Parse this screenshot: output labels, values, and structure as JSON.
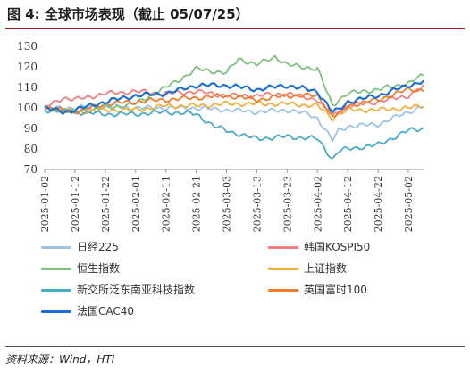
{
  "header": {
    "title": "图 4:  全球市场表现（截止 05/07/25）"
  },
  "source": "资料来源：Wind，HTI",
  "chart_data": {
    "type": "line",
    "title": "",
    "xlabel": "",
    "ylabel": "",
    "ylim": [
      70,
      130
    ],
    "yticks": [
      70,
      80,
      90,
      100,
      110,
      120,
      130
    ],
    "grid": false,
    "legend_position": "bottom",
    "x_tick_labels": [
      "2025-01-02",
      "2025-01-12",
      "2025-01-22",
      "2025-02-01",
      "2025-02-11",
      "2025-02-21",
      "2025-03-03",
      "2025-03-13",
      "2025-03-23",
      "2025-04-02",
      "2025-04-12",
      "2025-04-22",
      "2025-05-02"
    ],
    "x_start": "2025-01-02",
    "x_end": "2025-05-07",
    "series": [
      {
        "name": "日经225",
        "color": "#9DC3E6",
        "points": [
          [
            "2025-01-02",
            100
          ],
          [
            "2025-01-12",
            100
          ],
          [
            "2025-01-22",
            101
          ],
          [
            "2025-02-01",
            100
          ],
          [
            "2025-02-11",
            100
          ],
          [
            "2025-02-21",
            100
          ],
          [
            "2025-03-03",
            99
          ],
          [
            "2025-03-13",
            98
          ],
          [
            "2025-03-23",
            99
          ],
          [
            "2025-03-30",
            97
          ],
          [
            "2025-04-02",
            95
          ],
          [
            "2025-04-07",
            84
          ],
          [
            "2025-04-09",
            89
          ],
          [
            "2025-04-12",
            91
          ],
          [
            "2025-04-22",
            92
          ],
          [
            "2025-05-02",
            98
          ],
          [
            "2025-05-07",
            101
          ]
        ]
      },
      {
        "name": "韩国KOSPI50",
        "color": "#F08080",
        "points": [
          [
            "2025-01-02",
            100
          ],
          [
            "2025-01-08",
            105
          ],
          [
            "2025-01-12",
            104
          ],
          [
            "2025-01-22",
            107
          ],
          [
            "2025-02-01",
            108
          ],
          [
            "2025-02-11",
            107
          ],
          [
            "2025-02-21",
            108
          ],
          [
            "2025-03-03",
            106
          ],
          [
            "2025-03-13",
            106
          ],
          [
            "2025-03-23",
            107
          ],
          [
            "2025-04-02",
            104
          ],
          [
            "2025-04-07",
            96
          ],
          [
            "2025-04-09",
            98
          ],
          [
            "2025-04-12",
            101
          ],
          [
            "2025-04-22",
            103
          ],
          [
            "2025-05-02",
            106
          ],
          [
            "2025-05-07",
            110
          ]
        ]
      },
      {
        "name": "恒生指数",
        "color": "#7FBF7F",
        "points": [
          [
            "2025-01-02",
            100
          ],
          [
            "2025-01-12",
            98
          ],
          [
            "2025-01-22",
            100
          ],
          [
            "2025-02-01",
            102
          ],
          [
            "2025-02-11",
            110
          ],
          [
            "2025-02-18",
            116
          ],
          [
            "2025-02-21",
            119
          ],
          [
            "2025-03-03",
            117
          ],
          [
            "2025-03-07",
            124
          ],
          [
            "2025-03-13",
            121
          ],
          [
            "2025-03-19",
            125
          ],
          [
            "2025-03-23",
            121
          ],
          [
            "2025-04-02",
            119
          ],
          [
            "2025-04-07",
            101
          ],
          [
            "2025-04-09",
            104
          ],
          [
            "2025-04-12",
            107
          ],
          [
            "2025-04-22",
            109
          ],
          [
            "2025-05-02",
            112
          ],
          [
            "2025-05-07",
            116
          ]
        ]
      },
      {
        "name": "上证指数",
        "color": "#F0B040",
        "points": [
          [
            "2025-01-02",
            100
          ],
          [
            "2025-01-12",
            98
          ],
          [
            "2025-01-22",
            99
          ],
          [
            "2025-02-01",
            99
          ],
          [
            "2025-02-11",
            101
          ],
          [
            "2025-02-21",
            101
          ],
          [
            "2025-03-03",
            102
          ],
          [
            "2025-03-13",
            102
          ],
          [
            "2025-03-23",
            102
          ],
          [
            "2025-04-02",
            101
          ],
          [
            "2025-04-07",
            95
          ],
          [
            "2025-04-09",
            97
          ],
          [
            "2025-04-12",
            99
          ],
          [
            "2025-04-22",
            99
          ],
          [
            "2025-05-02",
            100
          ],
          [
            "2025-05-07",
            101
          ]
        ]
      },
      {
        "name": "新交所泛东南亚科技指数",
        "color": "#4BACC6",
        "points": [
          [
            "2025-01-02",
            99
          ],
          [
            "2025-01-12",
            98
          ],
          [
            "2025-01-22",
            97
          ],
          [
            "2025-02-01",
            97
          ],
          [
            "2025-02-11",
            98
          ],
          [
            "2025-02-21",
            97
          ],
          [
            "2025-02-27",
            91
          ],
          [
            "2025-03-03",
            89
          ],
          [
            "2025-03-10",
            86
          ],
          [
            "2025-03-13",
            85
          ],
          [
            "2025-03-23",
            86
          ],
          [
            "2025-04-02",
            85
          ],
          [
            "2025-04-07",
            75
          ],
          [
            "2025-04-09",
            79
          ],
          [
            "2025-04-12",
            80
          ],
          [
            "2025-04-22",
            82
          ],
          [
            "2025-05-02",
            89
          ],
          [
            "2025-05-07",
            90
          ]
        ]
      },
      {
        "name": "英国富时100",
        "color": "#ED7D31",
        "points": [
          [
            "2025-01-02",
            100
          ],
          [
            "2025-01-12",
            98
          ],
          [
            "2025-01-22",
            102
          ],
          [
            "2025-02-01",
            103
          ],
          [
            "2025-02-11",
            104
          ],
          [
            "2025-02-21",
            105
          ],
          [
            "2025-03-03",
            106
          ],
          [
            "2025-03-13",
            104
          ],
          [
            "2025-03-23",
            106
          ],
          [
            "2025-04-02",
            106
          ],
          [
            "2025-04-07",
            96
          ],
          [
            "2025-04-09",
            97
          ],
          [
            "2025-04-12",
            101
          ],
          [
            "2025-04-22",
            104
          ],
          [
            "2025-05-02",
            109
          ],
          [
            "2025-05-07",
            109
          ]
        ]
      },
      {
        "name": "法国CAC40",
        "color": "#1F6FD1",
        "points": [
          [
            "2025-01-02",
            100
          ],
          [
            "2025-01-08",
            98
          ],
          [
            "2025-01-12",
            99
          ],
          [
            "2025-01-22",
            103
          ],
          [
            "2025-02-01",
            106
          ],
          [
            "2025-02-11",
            107
          ],
          [
            "2025-02-21",
            111
          ],
          [
            "2025-03-03",
            111
          ],
          [
            "2025-03-13",
            109
          ],
          [
            "2025-03-23",
            111
          ],
          [
            "2025-04-02",
            108
          ],
          [
            "2025-04-07",
            98
          ],
          [
            "2025-04-09",
            99
          ],
          [
            "2025-04-12",
            103
          ],
          [
            "2025-04-22",
            106
          ],
          [
            "2025-05-02",
            111
          ],
          [
            "2025-05-07",
            113
          ]
        ]
      }
    ]
  }
}
